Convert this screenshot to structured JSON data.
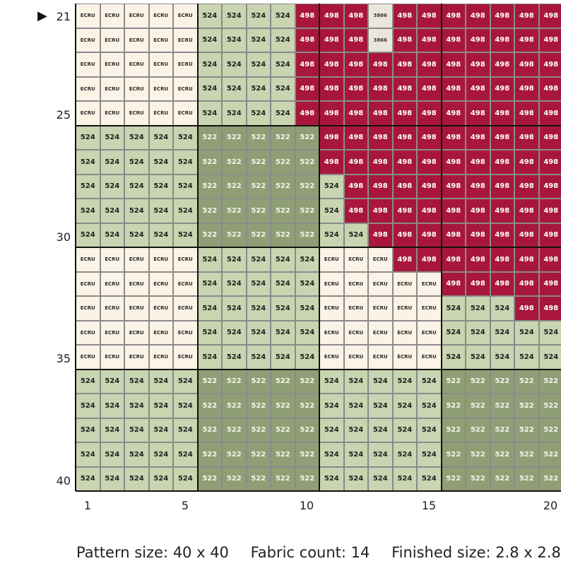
{
  "current_row_marker": "▶",
  "current_row": "21",
  "row_labels": [
    "21",
    "25",
    "30",
    "35",
    "40"
  ],
  "column_labels": [
    "1",
    "5",
    "10",
    "15",
    "20"
  ],
  "legend": {
    "ECRU": "#fbf3e6",
    "524": "#c9d4b1",
    "522": "#8f9e74",
    "498": "#a8173b",
    "3866": "#ece5da"
  },
  "grid": [
    [
      "ECRU",
      "ECRU",
      "ECRU",
      "ECRU",
      "ECRU",
      "524",
      "524",
      "524",
      "524",
      "498",
      "498",
      "498",
      "3866",
      "498",
      "498",
      "498",
      "498",
      "498",
      "498",
      "498"
    ],
    [
      "ECRU",
      "ECRU",
      "ECRU",
      "ECRU",
      "ECRU",
      "524",
      "524",
      "524",
      "524",
      "498",
      "498",
      "498",
      "3866",
      "498",
      "498",
      "498",
      "498",
      "498",
      "498",
      "498"
    ],
    [
      "ECRU",
      "ECRU",
      "ECRU",
      "ECRU",
      "ECRU",
      "524",
      "524",
      "524",
      "524",
      "498",
      "498",
      "498",
      "498",
      "498",
      "498",
      "498",
      "498",
      "498",
      "498",
      "498"
    ],
    [
      "ECRU",
      "ECRU",
      "ECRU",
      "ECRU",
      "ECRU",
      "524",
      "524",
      "524",
      "524",
      "498",
      "498",
      "498",
      "498",
      "498",
      "498",
      "498",
      "498",
      "498",
      "498",
      "498"
    ],
    [
      "ECRU",
      "ECRU",
      "ECRU",
      "ECRU",
      "ECRU",
      "524",
      "524",
      "524",
      "524",
      "498",
      "498",
      "498",
      "498",
      "498",
      "498",
      "498",
      "498",
      "498",
      "498",
      "498"
    ],
    [
      "524",
      "524",
      "524",
      "524",
      "524",
      "522",
      "522",
      "522",
      "522",
      "522",
      "498",
      "498",
      "498",
      "498",
      "498",
      "498",
      "498",
      "498",
      "498",
      "498"
    ],
    [
      "524",
      "524",
      "524",
      "524",
      "524",
      "522",
      "522",
      "522",
      "522",
      "522",
      "498",
      "498",
      "498",
      "498",
      "498",
      "498",
      "498",
      "498",
      "498",
      "498"
    ],
    [
      "524",
      "524",
      "524",
      "524",
      "524",
      "522",
      "522",
      "522",
      "522",
      "522",
      "524",
      "498",
      "498",
      "498",
      "498",
      "498",
      "498",
      "498",
      "498",
      "498"
    ],
    [
      "524",
      "524",
      "524",
      "524",
      "524",
      "522",
      "522",
      "522",
      "522",
      "522",
      "524",
      "498",
      "498",
      "498",
      "498",
      "498",
      "498",
      "498",
      "498",
      "498"
    ],
    [
      "524",
      "524",
      "524",
      "524",
      "524",
      "522",
      "522",
      "522",
      "522",
      "522",
      "524",
      "524",
      "498",
      "498",
      "498",
      "498",
      "498",
      "498",
      "498",
      "498"
    ],
    [
      "ECRU",
      "ECRU",
      "ECRU",
      "ECRU",
      "ECRU",
      "524",
      "524",
      "524",
      "524",
      "524",
      "ECRU",
      "ECRU",
      "ECRU",
      "498",
      "498",
      "498",
      "498",
      "498",
      "498",
      "498"
    ],
    [
      "ECRU",
      "ECRU",
      "ECRU",
      "ECRU",
      "ECRU",
      "524",
      "524",
      "524",
      "524",
      "524",
      "ECRU",
      "ECRU",
      "ECRU",
      "ECRU",
      "ECRU",
      "498",
      "498",
      "498",
      "498",
      "498"
    ],
    [
      "ECRU",
      "ECRU",
      "ECRU",
      "ECRU",
      "ECRU",
      "524",
      "524",
      "524",
      "524",
      "524",
      "ECRU",
      "ECRU",
      "ECRU",
      "ECRU",
      "ECRU",
      "524",
      "524",
      "524",
      "498",
      "498"
    ],
    [
      "ECRU",
      "ECRU",
      "ECRU",
      "ECRU",
      "ECRU",
      "524",
      "524",
      "524",
      "524",
      "524",
      "ECRU",
      "ECRU",
      "ECRU",
      "ECRU",
      "ECRU",
      "524",
      "524",
      "524",
      "524",
      "524"
    ],
    [
      "ECRU",
      "ECRU",
      "ECRU",
      "ECRU",
      "ECRU",
      "524",
      "524",
      "524",
      "524",
      "524",
      "ECRU",
      "ECRU",
      "ECRU",
      "ECRU",
      "ECRU",
      "524",
      "524",
      "524",
      "524",
      "524"
    ],
    [
      "524",
      "524",
      "524",
      "524",
      "524",
      "522",
      "522",
      "522",
      "522",
      "522",
      "524",
      "524",
      "524",
      "524",
      "524",
      "522",
      "522",
      "522",
      "522",
      "522"
    ],
    [
      "524",
      "524",
      "524",
      "524",
      "524",
      "522",
      "522",
      "522",
      "522",
      "522",
      "524",
      "524",
      "524",
      "524",
      "524",
      "522",
      "522",
      "522",
      "522",
      "522"
    ],
    [
      "524",
      "524",
      "524",
      "524",
      "524",
      "522",
      "522",
      "522",
      "522",
      "522",
      "524",
      "524",
      "524",
      "524",
      "524",
      "522",
      "522",
      "522",
      "522",
      "522"
    ],
    [
      "524",
      "524",
      "524",
      "524",
      "524",
      "522",
      "522",
      "522",
      "522",
      "522",
      "524",
      "524",
      "524",
      "524",
      "524",
      "522",
      "522",
      "522",
      "522",
      "522"
    ],
    [
      "524",
      "524",
      "524",
      "524",
      "524",
      "522",
      "522",
      "522",
      "522",
      "522",
      "524",
      "524",
      "524",
      "524",
      "524",
      "522",
      "522",
      "522",
      "522",
      "522"
    ]
  ],
  "footer": {
    "pattern_size": "Pattern size: 40 x 40",
    "fabric_count": "Fabric count: 14",
    "finished_size": "Finished size: 2.8 x 2.8\""
  }
}
